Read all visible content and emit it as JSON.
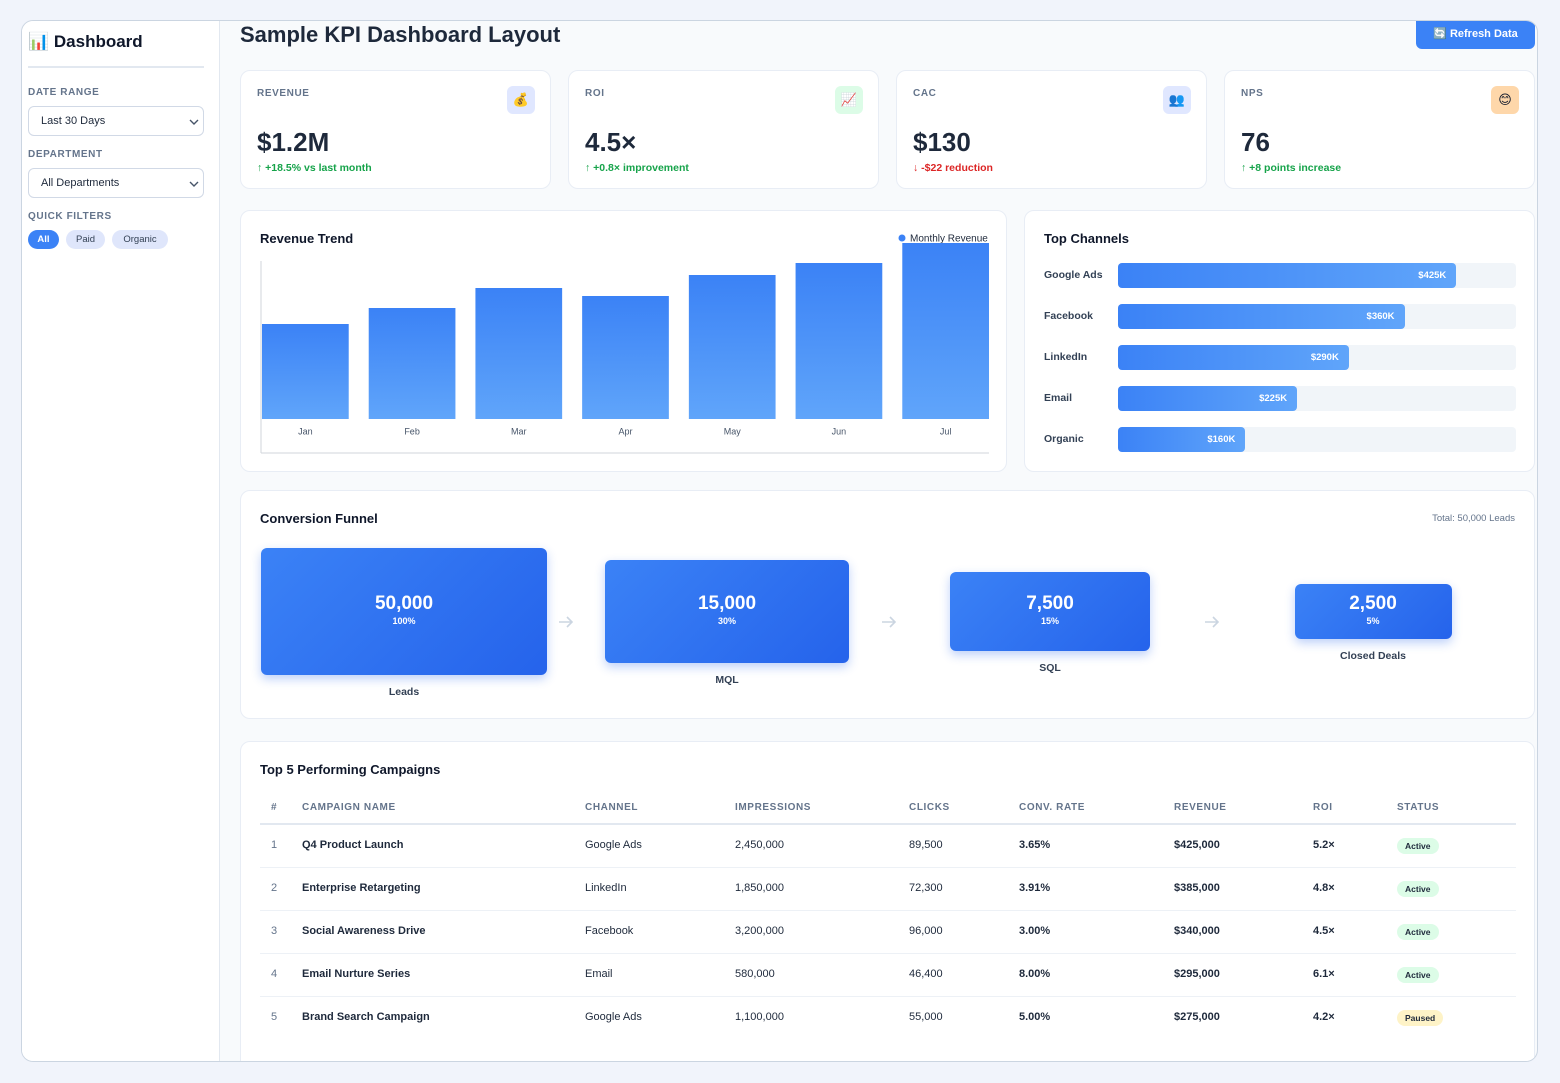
{
  "sidebar": {
    "title": "📊 Dashboard",
    "filters": [
      {
        "label": "DATE RANGE",
        "value": "Last 30 Days"
      },
      {
        "label": "DEPARTMENT",
        "value": "All Departments"
      }
    ],
    "quick_filters_label": "QUICK FILTERS",
    "quick_filters": [
      "All",
      "Paid",
      "Organic"
    ]
  },
  "header": {
    "title": "Sample KPI Dashboard Layout",
    "button": "🔄 Refresh Data"
  },
  "kpis": [
    {
      "label": "REVENUE",
      "icon": "💰",
      "icon_bg": "#e0e7ff",
      "value": "$1.2M",
      "change": "↑ +18.5% vs last month",
      "change_color": "#16a34a"
    },
    {
      "label": "ROI",
      "icon": "📈",
      "icon_bg": "#dcfce7",
      "value": "4.5×",
      "change": "↑ +0.8× improvement",
      "change_color": "#16a34a"
    },
    {
      "label": "CAC",
      "icon": "👥",
      "icon_bg": "#e0e7ff",
      "value": "$130",
      "change": "↓ -$22 reduction",
      "change_color": "#dc2626"
    },
    {
      "label": "NPS",
      "icon": "😊",
      "icon_bg": "#fed7aa",
      "value": "76",
      "change": "↑ +8 points increase",
      "change_color": "#16a34a"
    }
  ],
  "revenue_trend": {
    "type": "bar",
    "title": "Revenue Trend",
    "legend": "Monthly Revenue",
    "color": "#3b82f6",
    "categories": [
      "Jan",
      "Feb",
      "Mar",
      "Apr",
      "May",
      "Jun",
      "Jul"
    ],
    "values": [
      95,
      111,
      131,
      123,
      144,
      156,
      176
    ]
  },
  "top_channels": {
    "type": "bar",
    "title": "Top Channels",
    "color": "#3b82f6",
    "categories": [
      "Google Ads",
      "Facebook",
      "LinkedIn",
      "Email",
      "Organic"
    ],
    "values": [
      425,
      360,
      290,
      225,
      160
    ],
    "value_labels": [
      "$425K",
      "$360K",
      "$290K",
      "$225K",
      "$160K"
    ],
    "xlim": [
      0,
      500
    ]
  },
  "funnel": {
    "title": "Conversion Funnel",
    "total": "Total: 50,000 Leads",
    "stages": [
      {
        "value": "50,000",
        "percent": "100%",
        "label": "Leads"
      },
      {
        "value": "15,000",
        "percent": "30%",
        "label": "MQL"
      },
      {
        "value": "7,500",
        "percent": "15%",
        "label": "SQL"
      },
      {
        "value": "2,500",
        "percent": "5%",
        "label": "Closed Deals"
      }
    ]
  },
  "campaigns": {
    "title": "Top 5 Performing Campaigns",
    "columns": [
      "#",
      "CAMPAIGN NAME",
      "CHANNEL",
      "IMPRESSIONS",
      "CLICKS",
      "CONV. RATE",
      "REVENUE",
      "ROI",
      "STATUS"
    ],
    "rows": [
      [
        "1",
        "Q4 Product Launch",
        "Google Ads",
        "2,450,000",
        "89,500",
        "3.65%",
        "$425,000",
        "5.2×",
        "Active"
      ],
      [
        "2",
        "Enterprise Retargeting",
        "LinkedIn",
        "1,850,000",
        "72,300",
        "3.91%",
        "$385,000",
        "4.8×",
        "Active"
      ],
      [
        "3",
        "Social Awareness Drive",
        "Facebook",
        "3,200,000",
        "96,000",
        "3.00%",
        "$340,000",
        "4.5×",
        "Active"
      ],
      [
        "4",
        "Email Nurture Series",
        "Email",
        "580,000",
        "46,400",
        "8.00%",
        "$295,000",
        "6.1×",
        "Active"
      ],
      [
        "5",
        "Brand Search Campaign",
        "Google Ads",
        "1,100,000",
        "55,000",
        "5.00%",
        "$275,000",
        "4.2×",
        "Paused"
      ]
    ],
    "status_colors": [
      "#dcfce7",
      "#dcfce7",
      "#dcfce7",
      "#dcfce7",
      "#fef3c7"
    ]
  }
}
